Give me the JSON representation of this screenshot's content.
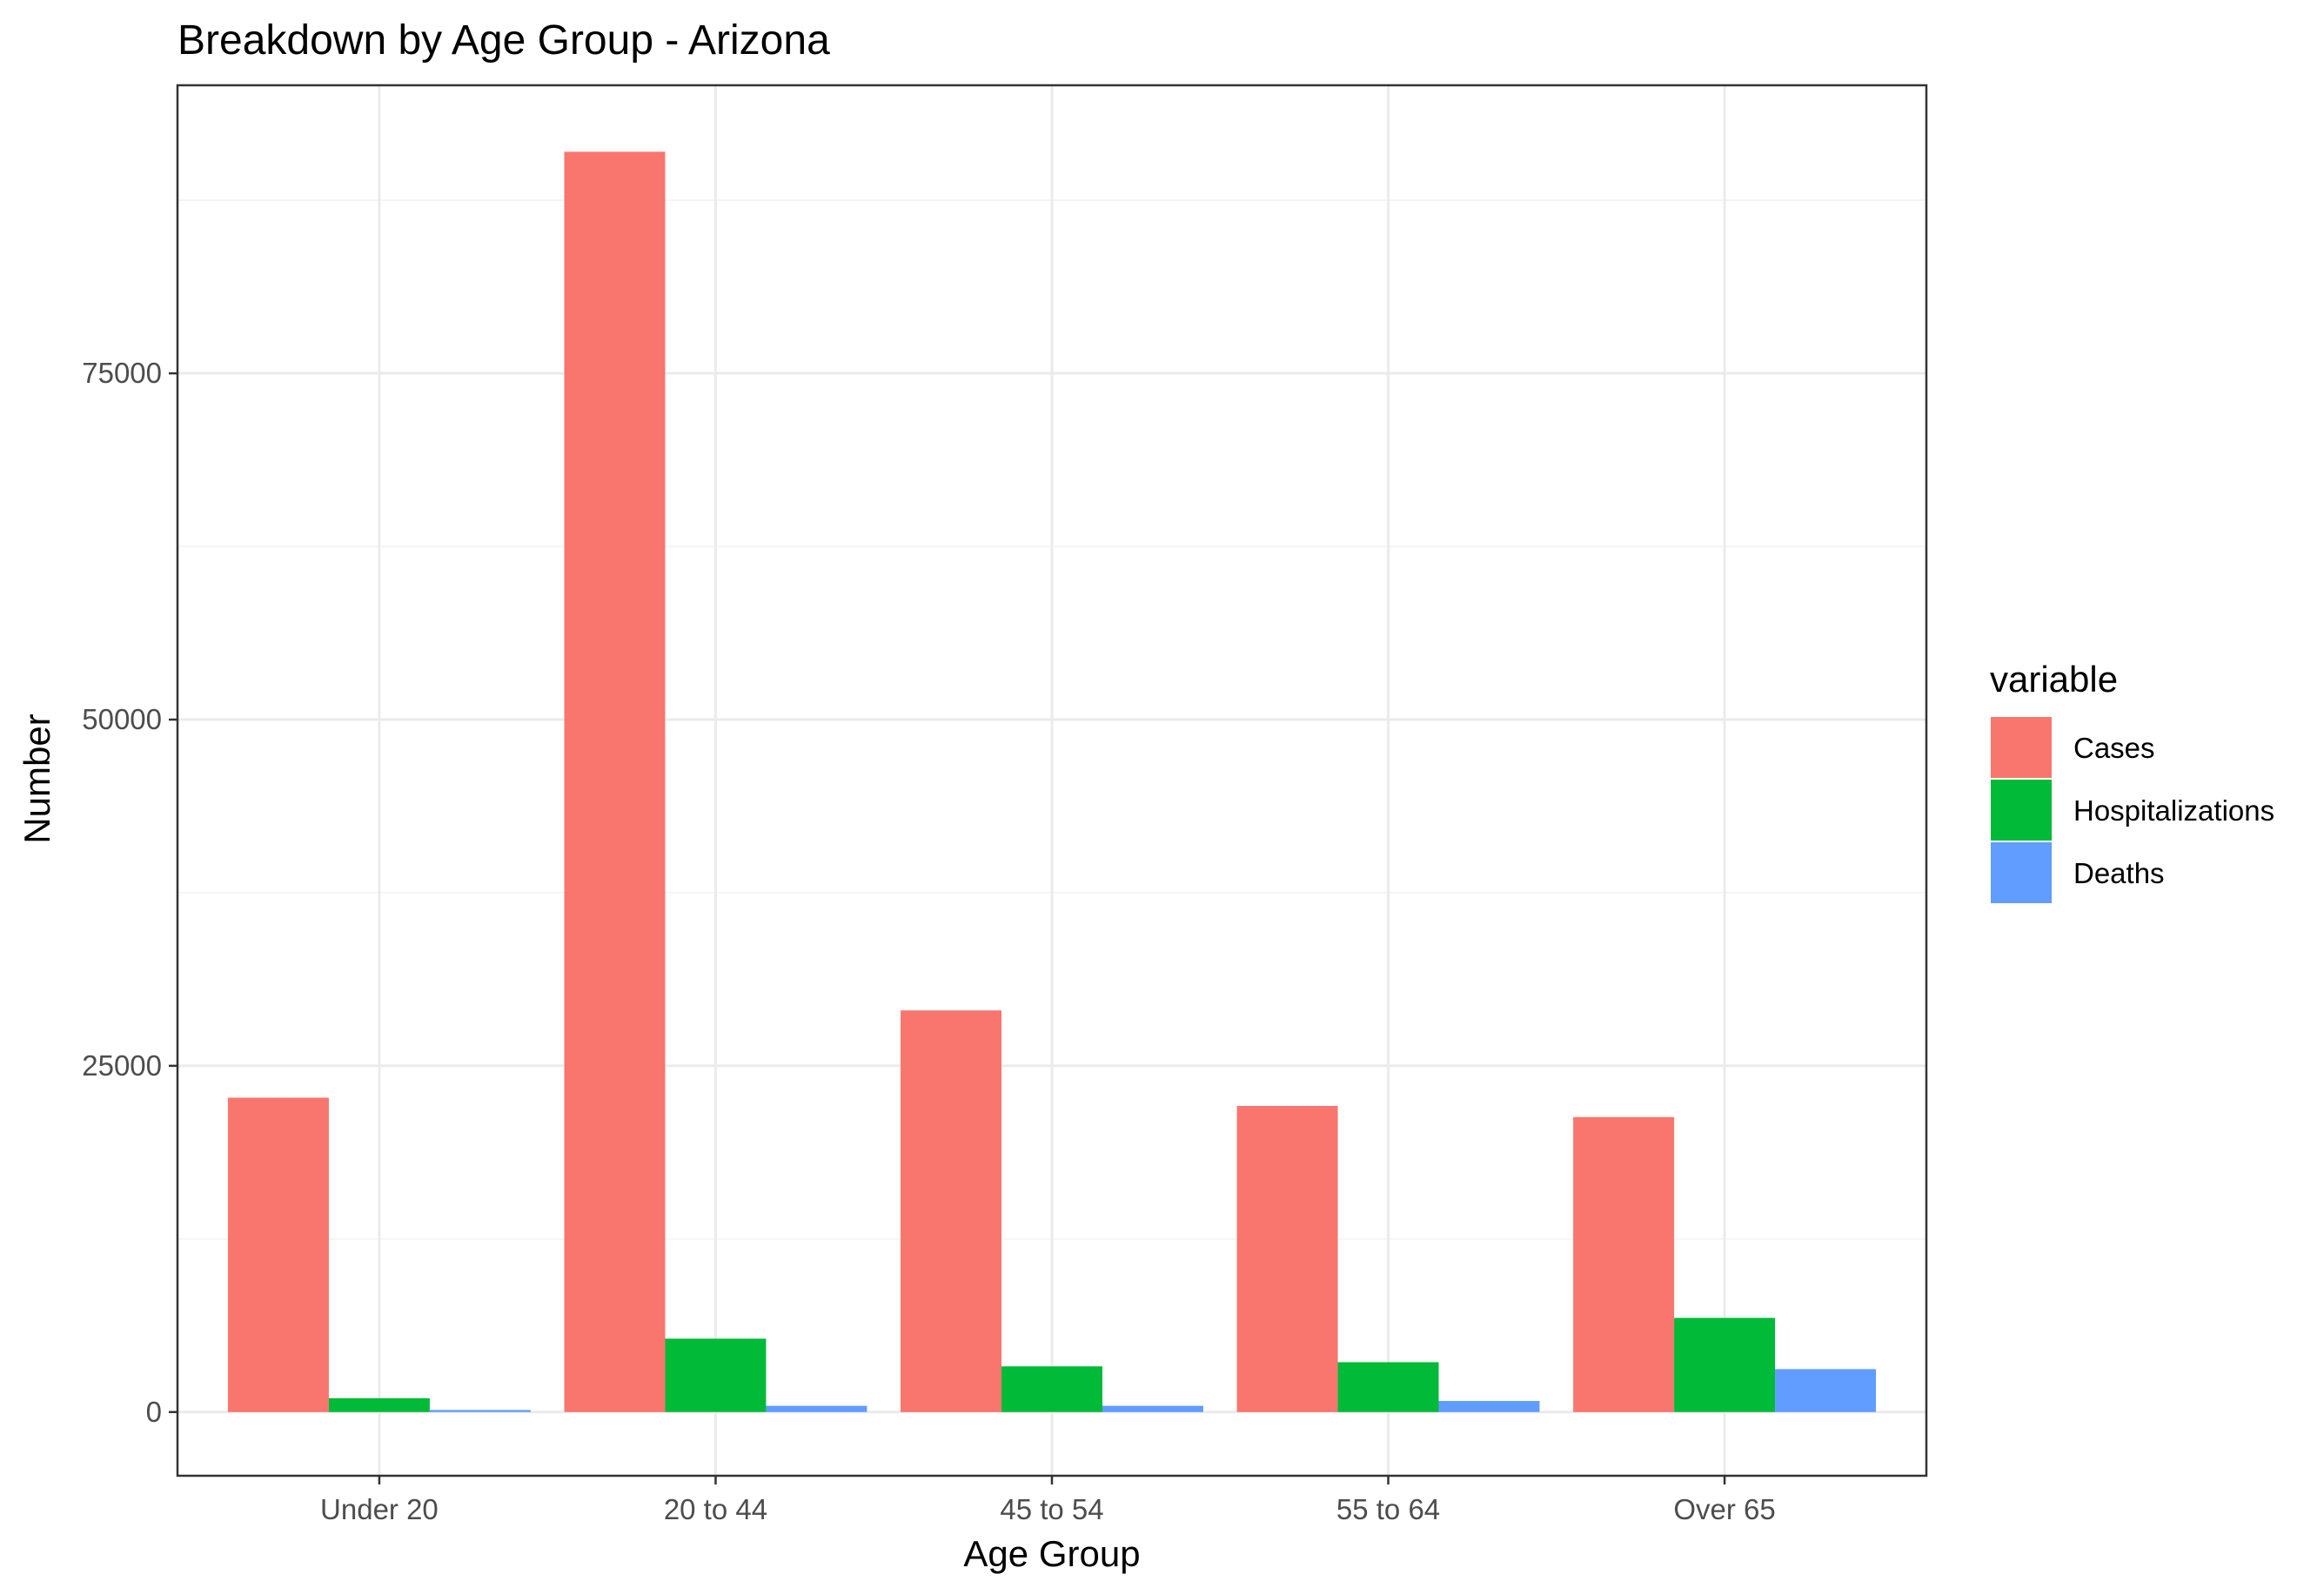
{
  "chart_data": {
    "type": "bar",
    "title": "Breakdown by Age Group - Arizona",
    "xlabel": "Age Group",
    "ylabel": "Number",
    "categories": [
      "Under 20",
      "20 to 44",
      "45 to 54",
      "55 to 64",
      "Over 65"
    ],
    "series": [
      {
        "name": "Cases",
        "color": "#F8766D",
        "values": [
          22700,
          91000,
          29000,
          22100,
          21300
        ]
      },
      {
        "name": "Hospitalizations",
        "color": "#00BA38",
        "values": [
          1000,
          5300,
          3300,
          3600,
          6800
        ]
      },
      {
        "name": "Deaths",
        "color": "#619CFF",
        "values": [
          150,
          450,
          450,
          800,
          3100
        ]
      }
    ],
    "yticks": [
      0,
      25000,
      50000,
      75000
    ],
    "ylim": [
      -4600,
      95800
    ],
    "legend": {
      "title": "variable",
      "position": "right"
    },
    "grid": true
  }
}
